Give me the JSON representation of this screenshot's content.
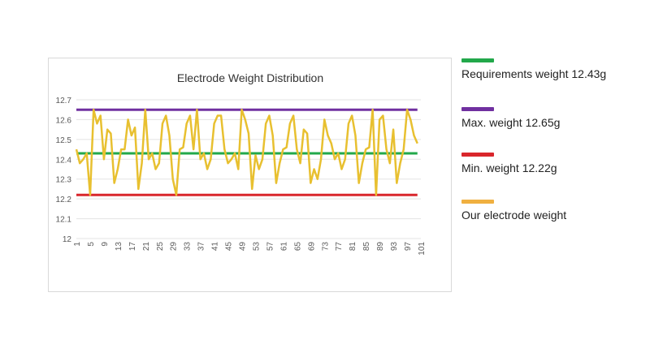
{
  "chart_data": {
    "type": "line",
    "title": "Electrode Weight Distribution",
    "xlabel": "",
    "ylabel": "",
    "ylim": [
      12,
      12.7
    ],
    "yticks": [
      "12",
      "12.1",
      "12.2",
      "12.3",
      "12.4",
      "12.5",
      "12.6",
      "12.7"
    ],
    "xlim": [
      1,
      101
    ],
    "xticks": [
      "1",
      "5",
      "9",
      "13",
      "17",
      "21",
      "25",
      "29",
      "33",
      "37",
      "41",
      "45",
      "49",
      "53",
      "57",
      "61",
      "65",
      "69",
      "73",
      "77",
      "81",
      "85",
      "89",
      "93",
      "97",
      "101"
    ],
    "grid": true,
    "legend_position": "right",
    "x": [
      1,
      2,
      3,
      4,
      5,
      6,
      7,
      8,
      9,
      10,
      11,
      12,
      13,
      14,
      15,
      16,
      17,
      18,
      19,
      20,
      21,
      22,
      23,
      24,
      25,
      26,
      27,
      28,
      29,
      30,
      31,
      32,
      33,
      34,
      35,
      36,
      37,
      38,
      39,
      40,
      41,
      42,
      43,
      44,
      45,
      46,
      47,
      48,
      49,
      50,
      51,
      52,
      53,
      54,
      55,
      56,
      57,
      58,
      59,
      60,
      61,
      62,
      63,
      64,
      65,
      66,
      67,
      68,
      69,
      70,
      71,
      72,
      73,
      74,
      75,
      76,
      77,
      78,
      79,
      80,
      81,
      82,
      83,
      84,
      85,
      86,
      87,
      88,
      89,
      90,
      91,
      92,
      93,
      94,
      95,
      96,
      97,
      98,
      99,
      100
    ],
    "series": [
      {
        "name": "Requirements  weight 12.43g",
        "color": "#22a84a",
        "constant": 12.43
      },
      {
        "name": "Max.  weight 12.65g",
        "color": "#7030a0",
        "constant": 12.65
      },
      {
        "name": "Min.  weight 12.22g",
        "color": "#d9262c",
        "constant": 12.22
      },
      {
        "name": "Our electrode  weight",
        "color": "#e8c030",
        "values": [
          12.45,
          12.38,
          12.4,
          12.43,
          12.22,
          12.65,
          12.58,
          12.62,
          12.4,
          12.55,
          12.53,
          12.28,
          12.35,
          12.45,
          12.45,
          12.6,
          12.52,
          12.56,
          12.25,
          12.38,
          12.65,
          12.4,
          12.43,
          12.35,
          12.38,
          12.58,
          12.62,
          12.52,
          12.3,
          12.22,
          12.45,
          12.46,
          12.58,
          12.62,
          12.45,
          12.65,
          12.4,
          12.43,
          12.35,
          12.4,
          12.58,
          12.62,
          12.62,
          12.45,
          12.38,
          12.4,
          12.43,
          12.35,
          12.65,
          12.6,
          12.53,
          12.25,
          12.42,
          12.35,
          12.4,
          12.58,
          12.62,
          12.52,
          12.28,
          12.38,
          12.45,
          12.46,
          12.58,
          12.62,
          12.45,
          12.38,
          12.55,
          12.53,
          12.28,
          12.35,
          12.3,
          12.4,
          12.6,
          12.52,
          12.48,
          12.4,
          12.43,
          12.35,
          12.4,
          12.58,
          12.62,
          12.52,
          12.28,
          12.38,
          12.45,
          12.46,
          12.65,
          12.22,
          12.6,
          12.62,
          12.45,
          12.38,
          12.55,
          12.28,
          12.38,
          12.45,
          12.65,
          12.6,
          12.52,
          12.48
        ]
      }
    ]
  }
}
